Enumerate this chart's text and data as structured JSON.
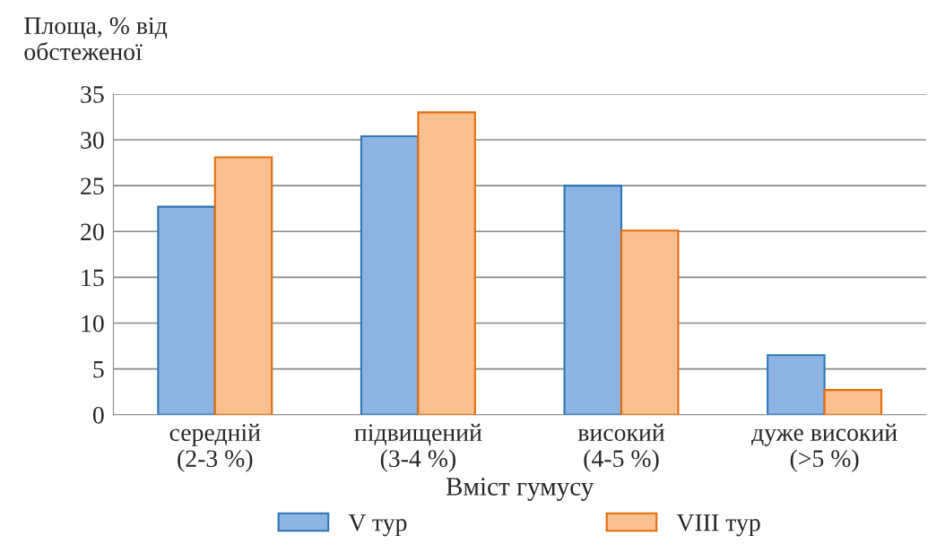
{
  "chart_data": {
    "type": "bar",
    "ylabel": "Площа, % від\nобстеженої",
    "xlabel": "Вміст гумусу",
    "categories": [
      "середній\n(2-3 %)",
      "підвищений\n(3-4 %)",
      "високий\n(4-5 %)",
      "дуже високий\n(>5 %)"
    ],
    "series": [
      {
        "name": "V тур",
        "color": "#8db3e2",
        "values": [
          22.7,
          30.4,
          25.0,
          6.5
        ]
      },
      {
        "name": "VIII тур",
        "color": "#fac090",
        "values": [
          28.1,
          33.0,
          20.1,
          2.7
        ]
      }
    ],
    "ylim": [
      0,
      35
    ],
    "yticks": [
      0,
      5,
      10,
      15,
      20,
      25,
      30,
      35
    ],
    "grid": "y",
    "legend": "bottom"
  }
}
